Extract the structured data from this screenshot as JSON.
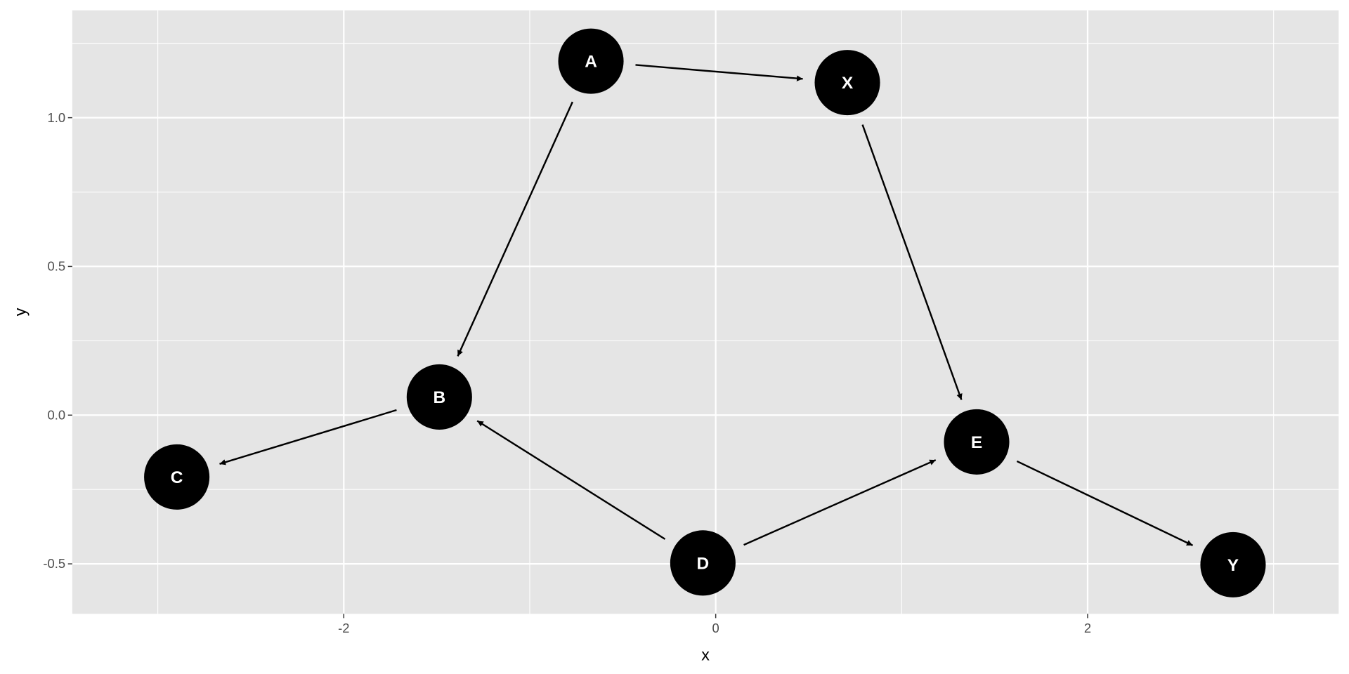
{
  "chart_data": {
    "type": "scatter",
    "xlabel": "x",
    "ylabel": "y",
    "xlim": [
      -3.46,
      3.35
    ],
    "ylim": [
      -0.668,
      1.361
    ],
    "x_ticks": [
      -2,
      0,
      2
    ],
    "x_tick_labels": [
      "-2",
      "0",
      "2"
    ],
    "y_ticks": [
      -0.5,
      0,
      0.5,
      1.0
    ],
    "y_tick_labels": [
      "-0.5",
      "0.0",
      "0.5",
      "1.0"
    ],
    "grid": true,
    "colors": {
      "panel": "#e5e5e5",
      "grid": "#ffffff",
      "node": "#000000",
      "node_text": "#ffffff",
      "edge": "#000000"
    },
    "nodes": [
      {
        "name": "A",
        "x": -0.671,
        "y": 1.19
      },
      {
        "name": "X",
        "x": 0.708,
        "y": 1.118
      },
      {
        "name": "B",
        "x": -1.486,
        "y": 0.061
      },
      {
        "name": "C",
        "x": -2.898,
        "y": -0.208
      },
      {
        "name": "E",
        "x": 1.403,
        "y": -0.09
      },
      {
        "name": "D",
        "x": -0.069,
        "y": -0.497
      },
      {
        "name": "Y",
        "x": 2.782,
        "y": -0.503
      }
    ],
    "edges": [
      {
        "from": "A",
        "to": "X"
      },
      {
        "from": "A",
        "to": "B"
      },
      {
        "from": "X",
        "to": "E"
      },
      {
        "from": "B",
        "to": "C"
      },
      {
        "from": "D",
        "to": "B"
      },
      {
        "from": "D",
        "to": "E"
      },
      {
        "from": "E",
        "to": "Y"
      }
    ]
  }
}
